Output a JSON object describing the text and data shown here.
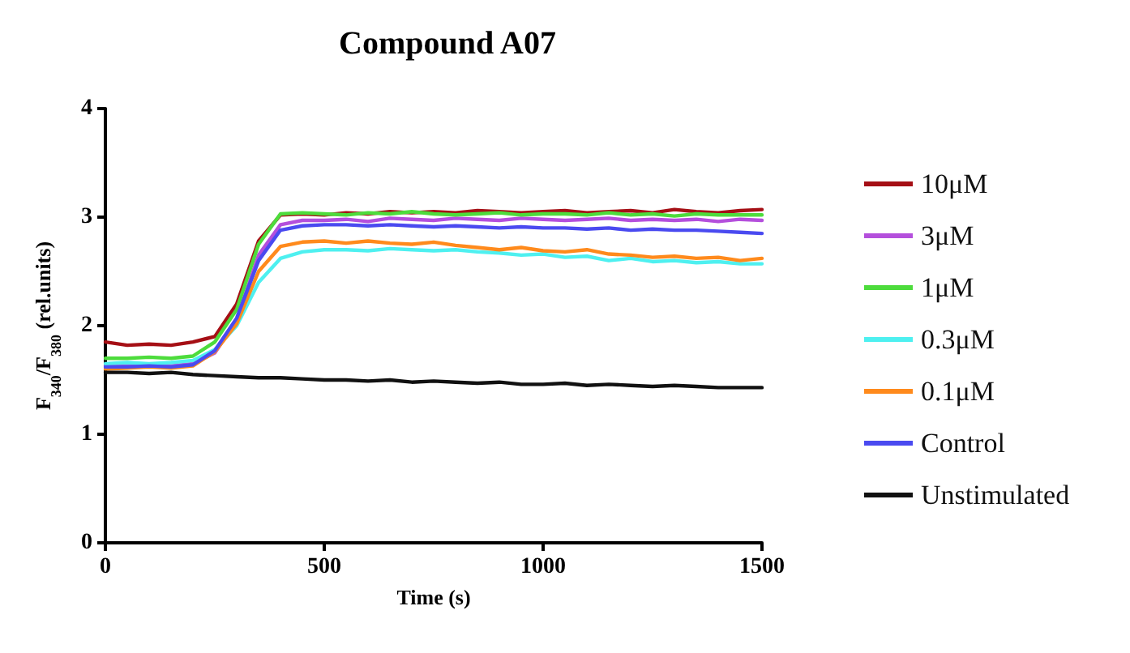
{
  "chart_data": {
    "type": "line",
    "title": "Compound A07",
    "xlabel": "Time (s)",
    "ylabel": "F$_{340}$/F$_{380}$ (rel.units)",
    "x": [
      0,
      50,
      100,
      150,
      200,
      250,
      300,
      350,
      400,
      450,
      500,
      550,
      600,
      650,
      700,
      750,
      800,
      850,
      900,
      950,
      1000,
      1050,
      1100,
      1150,
      1200,
      1250,
      1300,
      1350,
      1400,
      1450,
      1500
    ],
    "series": [
      {
        "name": "10μM",
        "color": "#a50f15",
        "values": [
          1.85,
          1.82,
          1.83,
          1.82,
          1.85,
          1.9,
          2.2,
          2.78,
          3.02,
          3.03,
          3.02,
          3.04,
          3.03,
          3.05,
          3.04,
          3.05,
          3.04,
          3.06,
          3.05,
          3.04,
          3.05,
          3.06,
          3.04,
          3.05,
          3.06,
          3.04,
          3.07,
          3.05,
          3.04,
          3.06,
          3.07
        ]
      },
      {
        "name": "3μM",
        "color": "#b44fdc",
        "values": [
          1.63,
          1.63,
          1.64,
          1.63,
          1.65,
          1.75,
          2.05,
          2.65,
          2.93,
          2.97,
          2.97,
          2.98,
          2.96,
          2.99,
          2.98,
          2.97,
          2.99,
          2.98,
          2.97,
          2.99,
          2.98,
          2.97,
          2.98,
          2.99,
          2.97,
          2.98,
          2.97,
          2.98,
          2.96,
          2.98,
          2.97
        ]
      },
      {
        "name": "1μM",
        "color": "#4ddc3c",
        "values": [
          1.7,
          1.7,
          1.71,
          1.7,
          1.72,
          1.85,
          2.15,
          2.75,
          3.03,
          3.04,
          3.03,
          3.02,
          3.04,
          3.03,
          3.05,
          3.03,
          3.02,
          3.03,
          3.04,
          3.02,
          3.03,
          3.03,
          3.02,
          3.04,
          3.02,
          3.03,
          3.01,
          3.03,
          3.02,
          3.02,
          3.02
        ]
      },
      {
        "name": "0.3μM",
        "color": "#4ef0f0",
        "values": [
          1.65,
          1.66,
          1.65,
          1.66,
          1.68,
          1.78,
          2.0,
          2.4,
          2.62,
          2.68,
          2.7,
          2.7,
          2.69,
          2.71,
          2.7,
          2.69,
          2.7,
          2.68,
          2.67,
          2.65,
          2.66,
          2.63,
          2.64,
          2.6,
          2.62,
          2.59,
          2.6,
          2.58,
          2.59,
          2.57,
          2.57
        ]
      },
      {
        "name": "0.1μM",
        "color": "#ff8a1c",
        "values": [
          1.6,
          1.61,
          1.62,
          1.61,
          1.63,
          1.76,
          2.02,
          2.5,
          2.73,
          2.77,
          2.78,
          2.76,
          2.78,
          2.76,
          2.75,
          2.77,
          2.74,
          2.72,
          2.7,
          2.72,
          2.69,
          2.68,
          2.7,
          2.66,
          2.65,
          2.63,
          2.64,
          2.62,
          2.63,
          2.6,
          2.62
        ]
      },
      {
        "name": "Control",
        "color": "#4a4af0",
        "values": [
          1.62,
          1.62,
          1.63,
          1.62,
          1.64,
          1.77,
          2.07,
          2.6,
          2.88,
          2.92,
          2.93,
          2.93,
          2.92,
          2.93,
          2.92,
          2.91,
          2.92,
          2.91,
          2.9,
          2.91,
          2.9,
          2.9,
          2.89,
          2.9,
          2.88,
          2.89,
          2.88,
          2.88,
          2.87,
          2.86,
          2.85
        ]
      },
      {
        "name": "Unstimulated",
        "color": "#111111",
        "values": [
          1.57,
          1.57,
          1.56,
          1.57,
          1.55,
          1.54,
          1.53,
          1.52,
          1.52,
          1.51,
          1.5,
          1.5,
          1.49,
          1.5,
          1.48,
          1.49,
          1.48,
          1.47,
          1.48,
          1.46,
          1.46,
          1.47,
          1.45,
          1.46,
          1.45,
          1.44,
          1.45,
          1.44,
          1.43,
          1.43,
          1.43
        ]
      }
    ],
    "xlim": [
      0,
      1500
    ],
    "xticks": [
      0,
      500,
      1000,
      1500
    ],
    "ylim": [
      0,
      4
    ],
    "yticks": [
      0,
      1,
      2,
      3,
      4
    ],
    "grid": false,
    "legend": "right",
    "marker": "none",
    "line_style": "solid"
  }
}
